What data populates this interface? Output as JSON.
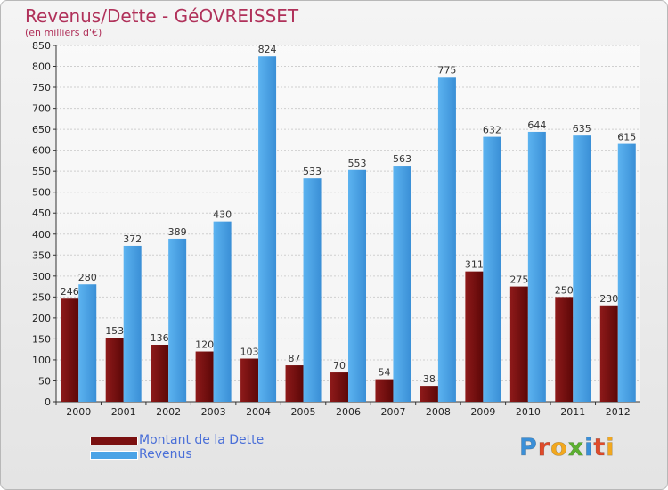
{
  "title": "Revenus/Dette - GéOVREISSET",
  "subtitle": "(en milliers d'€)",
  "logo": {
    "text": "Proxiti",
    "letter_colors": [
      "#3a8fd8",
      "#e04a2a",
      "#f2a81f",
      "#5cb030",
      "#3a8fd8",
      "#e04a2a",
      "#f2a81f"
    ]
  },
  "legend": [
    {
      "label": "Montant de la Dette",
      "color": "#7a1010"
    },
    {
      "label": "Revenus",
      "color": "#4aa3e6"
    }
  ],
  "chart_data": {
    "type": "bar",
    "title": "Revenus/Dette - GéOVREISSET",
    "subtitle": "(en milliers d'€)",
    "categories": [
      "2000",
      "2001",
      "2002",
      "2003",
      "2004",
      "2005",
      "2006",
      "2007",
      "2008",
      "2009",
      "2010",
      "2011",
      "2012"
    ],
    "series": [
      {
        "name": "Montant de la Dette",
        "color": "#7a1010",
        "values": [
          246,
          153,
          136,
          120,
          103,
          87,
          70,
          54,
          38,
          311,
          275,
          250,
          230
        ]
      },
      {
        "name": "Revenus",
        "color": "#4aa3e6",
        "values": [
          280,
          372,
          389,
          430,
          824,
          533,
          553,
          563,
          775,
          632,
          644,
          635,
          615
        ]
      }
    ],
    "ylim": [
      0,
      850
    ],
    "yticks": [
      0,
      50,
      100,
      150,
      200,
      250,
      300,
      350,
      400,
      450,
      500,
      550,
      600,
      650,
      700,
      750,
      800,
      850
    ],
    "grid": true,
    "legend_position": "bottom-left"
  }
}
